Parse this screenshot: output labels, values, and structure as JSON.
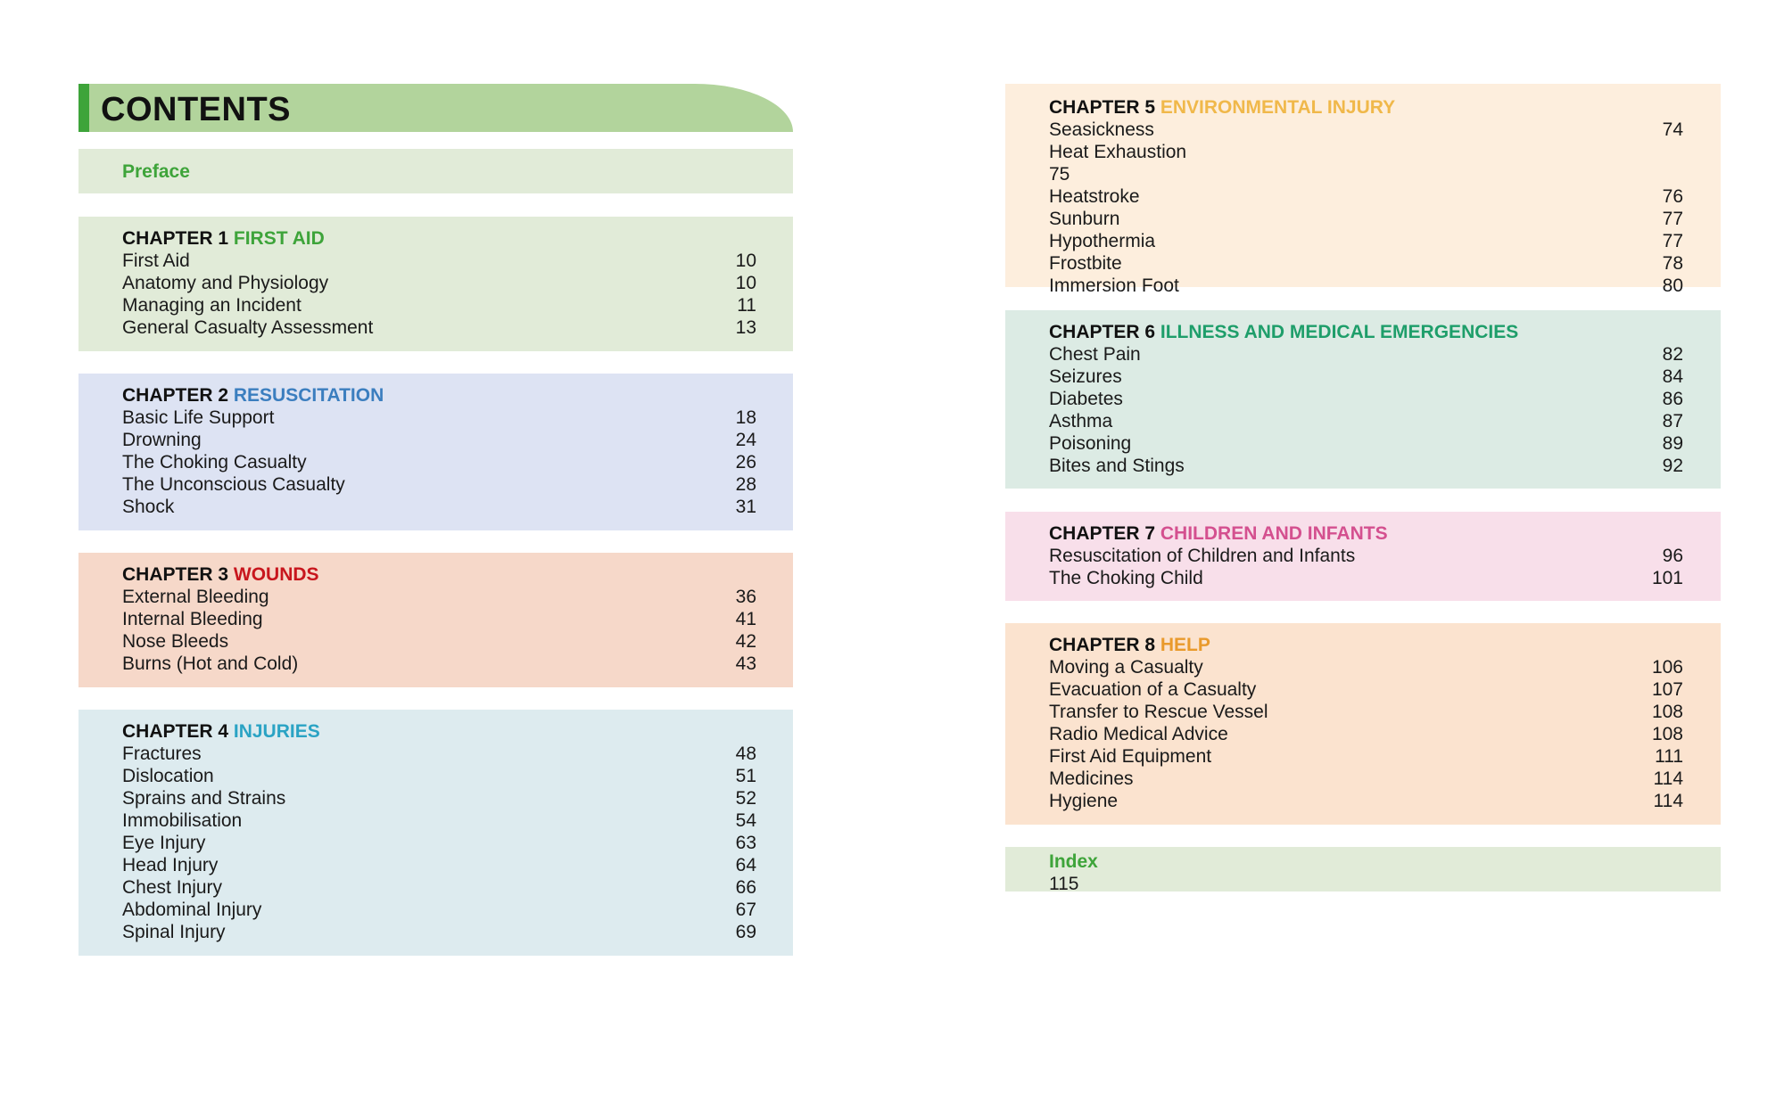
{
  "title": "CONTENTS",
  "preface": {
    "label": "Preface"
  },
  "chapters": {
    "c1": {
      "prefix": "CHAPTER 1",
      "name": "FIRST AID",
      "color": "#3ea43a",
      "bg": "#e1ebd8",
      "items": [
        [
          "First Aid",
          "10"
        ],
        [
          "Anatomy and Physiology",
          "10"
        ],
        [
          "Managing an Incident",
          "11"
        ],
        [
          "General Casualty Assessment",
          "13"
        ]
      ]
    },
    "c2": {
      "prefix": "CHAPTER 2",
      "name": "RESUSCITATION",
      "color": "#3b7ebf",
      "bg": "#dde3f3",
      "items": [
        [
          "Basic Life Support",
          "18"
        ],
        [
          "Drowning",
          "24"
        ],
        [
          "The Choking Casualty",
          "26"
        ],
        [
          "The Unconscious Casualty",
          "28"
        ],
        [
          "Shock",
          "31"
        ]
      ]
    },
    "c3": {
      "prefix": "CHAPTER 3",
      "name": "WOUNDS",
      "color": "#c8161d",
      "bg": "#f6d8c9",
      "items": [
        [
          "External Bleeding",
          "36"
        ],
        [
          "Internal Bleeding",
          "41"
        ],
        [
          "Nose Bleeds",
          "42"
        ],
        [
          "Burns (Hot and Cold)",
          "43"
        ]
      ]
    },
    "c4": {
      "prefix": "CHAPTER 4",
      "name": "INJURIES",
      "color": "#2aa3c4",
      "bg": "#ddebef",
      "items": [
        [
          "Fractures",
          "48"
        ],
        [
          "Dislocation",
          "51"
        ],
        [
          "Sprains and Strains",
          "52"
        ],
        [
          "Immobilisation",
          "54"
        ],
        [
          "Eye Injury",
          "63"
        ],
        [
          "Head Injury",
          "64"
        ],
        [
          "Chest Injury",
          "66"
        ],
        [
          "Abdominal Injury",
          "67"
        ],
        [
          "Spinal Injury",
          "69"
        ]
      ]
    },
    "c5": {
      "prefix": "CHAPTER 5",
      "name": "ENVIRONMENTAL INJURY",
      "color": "#f0b84a",
      "bg": "#fdeedd",
      "items": [
        [
          "Seasickness",
          "74"
        ],
        [
          "Heat Exhaustion",
          ""
        ],
        [
          "75",
          ""
        ],
        [
          "Heatstroke",
          "76"
        ],
        [
          "Sunburn",
          "77"
        ],
        [
          "Hypothermia",
          "77"
        ],
        [
          "Frostbite",
          "78"
        ],
        [
          "Immersion Foot",
          "80"
        ]
      ]
    },
    "c6": {
      "prefix": "CHAPTER 6",
      "name": "ILLNESS AND MEDICAL EMERGENCIES",
      "color": "#1e9e6a",
      "bg": "#dcebe4",
      "items": [
        [
          "Chest Pain",
          "82"
        ],
        [
          "Seizures",
          "84"
        ],
        [
          "Diabetes",
          "86"
        ],
        [
          "Asthma",
          "87"
        ],
        [
          "Poisoning",
          "89"
        ],
        [
          "Bites and Stings",
          "92"
        ]
      ]
    },
    "c7": {
      "prefix": "CHAPTER 7",
      "name": "CHILDREN AND INFANTS",
      "color": "#d4508f",
      "bg": "#f8dfea",
      "items": [
        [
          "Resuscitation of Children and Infants",
          "96"
        ],
        [
          "The Choking Child",
          "101"
        ]
      ]
    },
    "c8": {
      "prefix": "CHAPTER 8",
      "name": "HELP",
      "color": "#e99a2c",
      "bg": "#fbe3cf",
      "items": [
        [
          "Moving a Casualty",
          "106"
        ],
        [
          "Evacuation of a Casualty",
          "107"
        ],
        [
          "Transfer to Rescue Vessel",
          "108"
        ],
        [
          "Radio Medical Advice",
          "108"
        ],
        [
          "First Aid Equipment",
          "111"
        ],
        [
          "Medicines",
          "114"
        ],
        [
          "Hygiene",
          "114"
        ]
      ]
    }
  },
  "index": {
    "label": "Index",
    "page": "115"
  },
  "colors": {
    "header_bg": "#b2d49c",
    "header_accent": "#3ea43a",
    "preface_bg": "#e1ebd8",
    "index_bg": "#e1ebd8",
    "label_green": "#3ea43a"
  }
}
